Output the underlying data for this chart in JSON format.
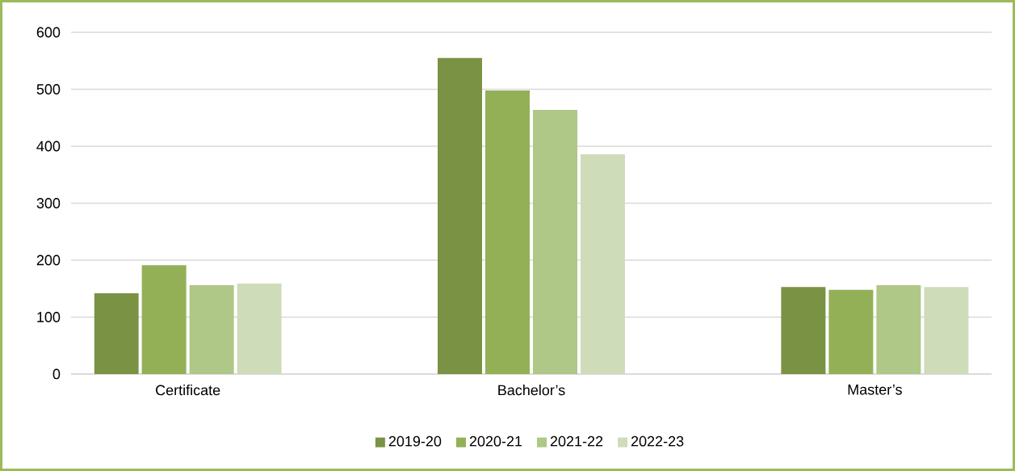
{
  "chart_data": {
    "type": "bar",
    "categories": [
      "Certificate",
      "Bachelor’s",
      "Master’s"
    ],
    "series": [
      {
        "name": "2019-20",
        "color": "#7a9244",
        "values": [
          142,
          555,
          153
        ]
      },
      {
        "name": "2020-21",
        "color": "#93b057",
        "values": [
          191,
          498,
          148
        ]
      },
      {
        "name": "2021-22",
        "color": "#afc787",
        "values": [
          156,
          464,
          156
        ]
      },
      {
        "name": "2022-23",
        "color": "#cfdcba",
        "values": [
          159,
          386,
          153
        ]
      }
    ],
    "ylim": [
      0,
      600
    ],
    "yticks": [
      0,
      100,
      200,
      300,
      400,
      500,
      600
    ],
    "grid": "y",
    "legend": "bottom"
  }
}
